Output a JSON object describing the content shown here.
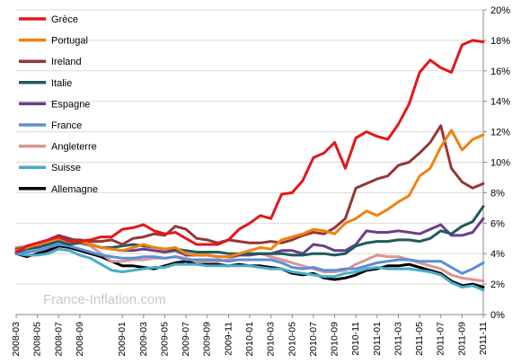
{
  "chart_data": {
    "type": "line",
    "title": "",
    "xlabel": "",
    "ylabel": "",
    "watermark": "France-Inflation.com",
    "ylim": [
      0,
      20
    ],
    "y_ticks": [
      0,
      2,
      4,
      6,
      8,
      10,
      12,
      14,
      16,
      18,
      20
    ],
    "y_tick_labels": [
      "0%",
      "2%",
      "4%",
      "6%",
      "8%",
      "10%",
      "12%",
      "14%",
      "16%",
      "18%",
      "20%"
    ],
    "y_axis_position": "right",
    "grid": true,
    "legend_position": "top-left",
    "x": [
      "2008-03",
      "2008-04",
      "2008-05",
      "2008-06",
      "2008-07",
      "2008-08",
      "2008-09",
      "2008-10",
      "2008-11",
      "2008-12",
      "2009-01",
      "2009-02",
      "2009-03",
      "2009-04",
      "2009-05",
      "2009-06",
      "2009-07",
      "2009-08",
      "2009-09",
      "2009-10",
      "2009-11",
      "2009-12",
      "2010-01",
      "2010-02",
      "2010-03",
      "2010-04",
      "2010-05",
      "2010-06",
      "2010-07",
      "2010-08",
      "2010-09",
      "2010-10",
      "2010-11",
      "2010-12",
      "2011-01",
      "2011-02",
      "2011-03",
      "2011-04",
      "2011-05",
      "2011-06",
      "2011-07",
      "2011-08",
      "2011-09",
      "2011-10",
      "2011-11"
    ],
    "x_tick_labels": [
      "2008-03",
      "2008-05",
      "2008-07",
      "2008-09",
      "2009-01",
      "2009-03",
      "2009-05",
      "2009-07",
      "2009-09",
      "2009-11",
      "2010-01",
      "2010-03",
      "2010-05",
      "2010-07",
      "2010-09",
      "2010-11",
      "2011-01",
      "2011-03",
      "2011-05",
      "2011-07",
      "2011-09",
      "2011-11"
    ],
    "series": [
      {
        "name": "Grèce",
        "color": "#e3171b",
        "values": [
          4.1,
          4.5,
          4.7,
          4.9,
          5.1,
          4.8,
          4.8,
          4.9,
          5.1,
          5.1,
          5.6,
          5.7,
          5.9,
          5.5,
          5.3,
          5.4,
          5.0,
          4.6,
          4.6,
          4.6,
          4.9,
          5.6,
          6.0,
          6.5,
          6.3,
          7.9,
          8.0,
          8.8,
          10.3,
          10.6,
          11.3,
          9.6,
          11.6,
          12.0,
          11.7,
          11.5,
          12.5,
          13.8,
          15.9,
          16.7,
          16.2,
          15.9,
          17.7,
          18.0,
          17.9
        ]
      },
      {
        "name": "Portugal",
        "color": "#f0820f",
        "values": [
          4.2,
          4.4,
          4.6,
          4.8,
          5.0,
          4.8,
          4.8,
          4.6,
          4.4,
          4.3,
          4.2,
          4.4,
          4.6,
          4.4,
          4.3,
          4.4,
          4.0,
          3.9,
          3.9,
          3.8,
          3.8,
          4.0,
          4.2,
          4.4,
          4.3,
          4.9,
          5.1,
          5.3,
          5.6,
          5.5,
          5.3,
          6.0,
          6.3,
          6.8,
          6.5,
          6.9,
          7.4,
          7.8,
          9.1,
          9.6,
          11.0,
          12.1,
          10.8,
          11.5,
          11.8
        ]
      },
      {
        "name": "Ireland",
        "color": "#953735",
        "values": [
          4.3,
          4.4,
          4.6,
          4.8,
          5.1,
          4.9,
          4.9,
          4.8,
          4.8,
          4.9,
          4.6,
          5.0,
          5.1,
          5.3,
          5.2,
          5.8,
          5.6,
          5.0,
          4.9,
          4.7,
          4.9,
          4.8,
          4.7,
          4.7,
          4.8,
          4.7,
          4.9,
          5.2,
          5.4,
          5.3,
          5.7,
          6.3,
          8.3,
          8.6,
          8.9,
          9.1,
          9.8,
          10.0,
          10.6,
          11.3,
          12.4,
          9.6,
          8.7,
          8.3,
          8.6
        ]
      },
      {
        "name": "Italie",
        "color": "#1f5a5f",
        "values": [
          4.1,
          4.3,
          4.4,
          4.6,
          4.8,
          4.6,
          4.7,
          4.6,
          4.4,
          4.4,
          4.5,
          4.6,
          4.5,
          4.4,
          4.3,
          4.3,
          4.2,
          4.1,
          4.1,
          4.1,
          4.0,
          4.0,
          4.0,
          4.0,
          4.0,
          4.0,
          3.9,
          3.9,
          4.0,
          4.0,
          3.9,
          4.0,
          4.5,
          4.7,
          4.8,
          4.8,
          4.9,
          4.9,
          4.8,
          5.0,
          5.5,
          5.3,
          5.8,
          6.1,
          7.1
        ]
      },
      {
        "name": "Espagne",
        "color": "#6a3f8a",
        "values": [
          4.2,
          4.4,
          4.6,
          4.9,
          5.2,
          5.0,
          4.8,
          4.6,
          4.4,
          4.3,
          4.2,
          4.2,
          4.3,
          4.2,
          4.1,
          4.2,
          3.9,
          3.9,
          3.9,
          3.8,
          3.8,
          3.9,
          3.9,
          4.0,
          4.0,
          4.2,
          4.2,
          4.0,
          4.6,
          4.5,
          4.2,
          4.2,
          4.6,
          5.5,
          5.4,
          5.4,
          5.5,
          5.4,
          5.3,
          5.6,
          5.9,
          5.2,
          5.2,
          5.4,
          6.3
        ]
      },
      {
        "name": "France",
        "color": "#5b8fd6",
        "values": [
          4.0,
          4.1,
          4.2,
          4.4,
          4.6,
          4.5,
          4.3,
          4.1,
          3.9,
          3.8,
          3.7,
          3.7,
          3.8,
          3.8,
          3.7,
          3.8,
          3.6,
          3.6,
          3.6,
          3.6,
          3.5,
          3.6,
          3.6,
          3.6,
          3.6,
          3.4,
          3.1,
          3.0,
          3.1,
          2.9,
          2.9,
          3.0,
          3.0,
          3.2,
          3.4,
          3.5,
          3.6,
          3.6,
          3.5,
          3.5,
          3.5,
          3.1,
          2.7,
          3.0,
          3.4
        ]
      },
      {
        "name": "Angleterre",
        "color": "#d99694",
        "values": [
          4.4,
          4.5,
          4.6,
          4.8,
          5.0,
          4.8,
          4.7,
          4.5,
          4.0,
          3.5,
          3.5,
          3.6,
          3.6,
          3.7,
          3.7,
          3.8,
          3.7,
          3.5,
          3.5,
          3.5,
          3.6,
          3.9,
          4.0,
          4.0,
          3.8,
          3.6,
          3.4,
          3.2,
          3.0,
          2.8,
          2.8,
          2.9,
          3.3,
          3.6,
          3.9,
          3.8,
          3.8,
          3.6,
          3.4,
          3.2,
          3.0,
          2.6,
          2.4,
          2.3,
          2.2
        ]
      },
      {
        "name": "Suisse",
        "color": "#4bacc6",
        "values": [
          4.0,
          3.9,
          3.9,
          4.0,
          4.3,
          4.2,
          3.9,
          3.7,
          3.3,
          2.9,
          2.8,
          2.9,
          3.0,
          3.1,
          3.1,
          3.3,
          3.3,
          3.3,
          3.2,
          3.2,
          3.2,
          3.2,
          3.2,
          3.1,
          3.0,
          3.0,
          2.8,
          2.7,
          2.6,
          2.5,
          2.5,
          2.7,
          2.8,
          3.0,
          3.1,
          3.0,
          3.0,
          3.0,
          2.9,
          2.8,
          2.6,
          2.1,
          1.8,
          1.9,
          1.6
        ]
      },
      {
        "name": "Allemagne",
        "color": "#000000",
        "values": [
          4.0,
          3.8,
          4.0,
          4.2,
          4.5,
          4.4,
          4.2,
          4.0,
          3.8,
          3.5,
          3.2,
          3.2,
          3.1,
          3.0,
          3.2,
          3.4,
          3.5,
          3.3,
          3.3,
          3.3,
          3.2,
          3.3,
          3.2,
          3.2,
          3.1,
          3.0,
          2.7,
          2.6,
          2.7,
          2.4,
          2.3,
          2.4,
          2.6,
          2.9,
          3.0,
          3.2,
          3.2,
          3.3,
          3.1,
          2.9,
          2.7,
          2.2,
          1.9,
          2.0,
          1.8
        ]
      }
    ]
  }
}
